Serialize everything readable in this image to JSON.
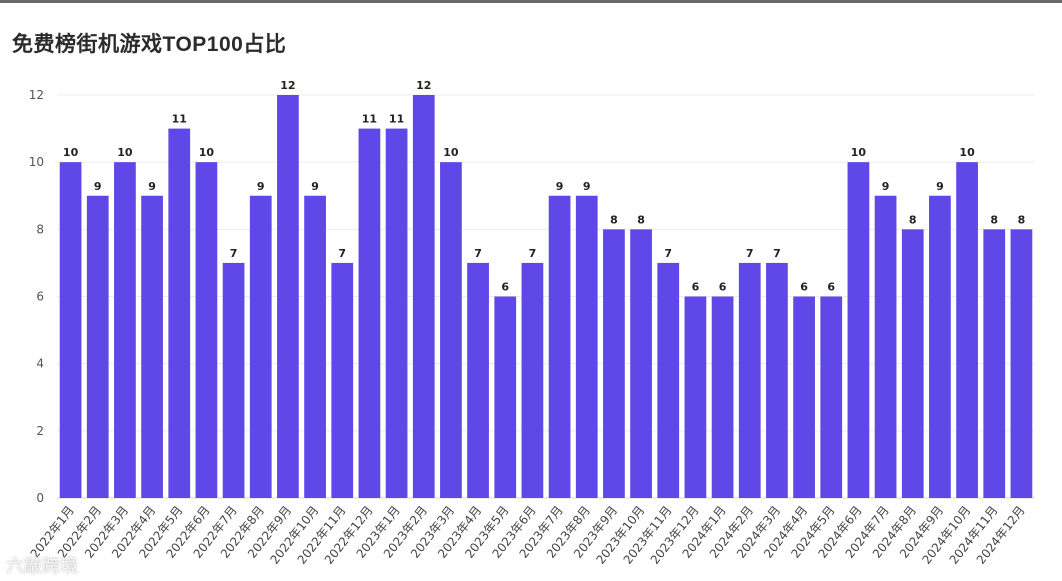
{
  "chart_data": {
    "type": "bar",
    "title": "免费榜街机游戏TOP100占比",
    "xlabel": "",
    "ylabel": "",
    "ylim": [
      0,
      12
    ],
    "yticks": [
      0,
      2,
      4,
      6,
      8,
      10,
      12
    ],
    "grid": true,
    "bar_color": "#6047e8",
    "categories": [
      "2022年1月",
      "2022年2月",
      "2022年3月",
      "2022年4月",
      "2022年5月",
      "2022年6月",
      "2022年7月",
      "2022年8月",
      "2022年9月",
      "2022年10月",
      "2022年11月",
      "2022年12月",
      "2023年1月",
      "2023年2月",
      "2023年3月",
      "2023年4月",
      "2023年5月",
      "2023年6月",
      "2023年7月",
      "2023年8月",
      "2023年9月",
      "2023年10月",
      "2023年11月",
      "2023年12月",
      "2024年1月",
      "2024年2月",
      "2024年3月",
      "2024年4月",
      "2024年5月",
      "2024年6月",
      "2024年7月",
      "2024年8月",
      "2024年9月",
      "2024年10月",
      "2024年11月",
      "2024年12月"
    ],
    "values": [
      10,
      9,
      10,
      9,
      11,
      10,
      7,
      9,
      12,
      9,
      7,
      11,
      11,
      12,
      10,
      7,
      6,
      7,
      9,
      9,
      8,
      8,
      7,
      6,
      6,
      7,
      7,
      6,
      6,
      10,
      9,
      8,
      9,
      10,
      8,
      8
    ]
  },
  "watermark": "六敲跨境"
}
